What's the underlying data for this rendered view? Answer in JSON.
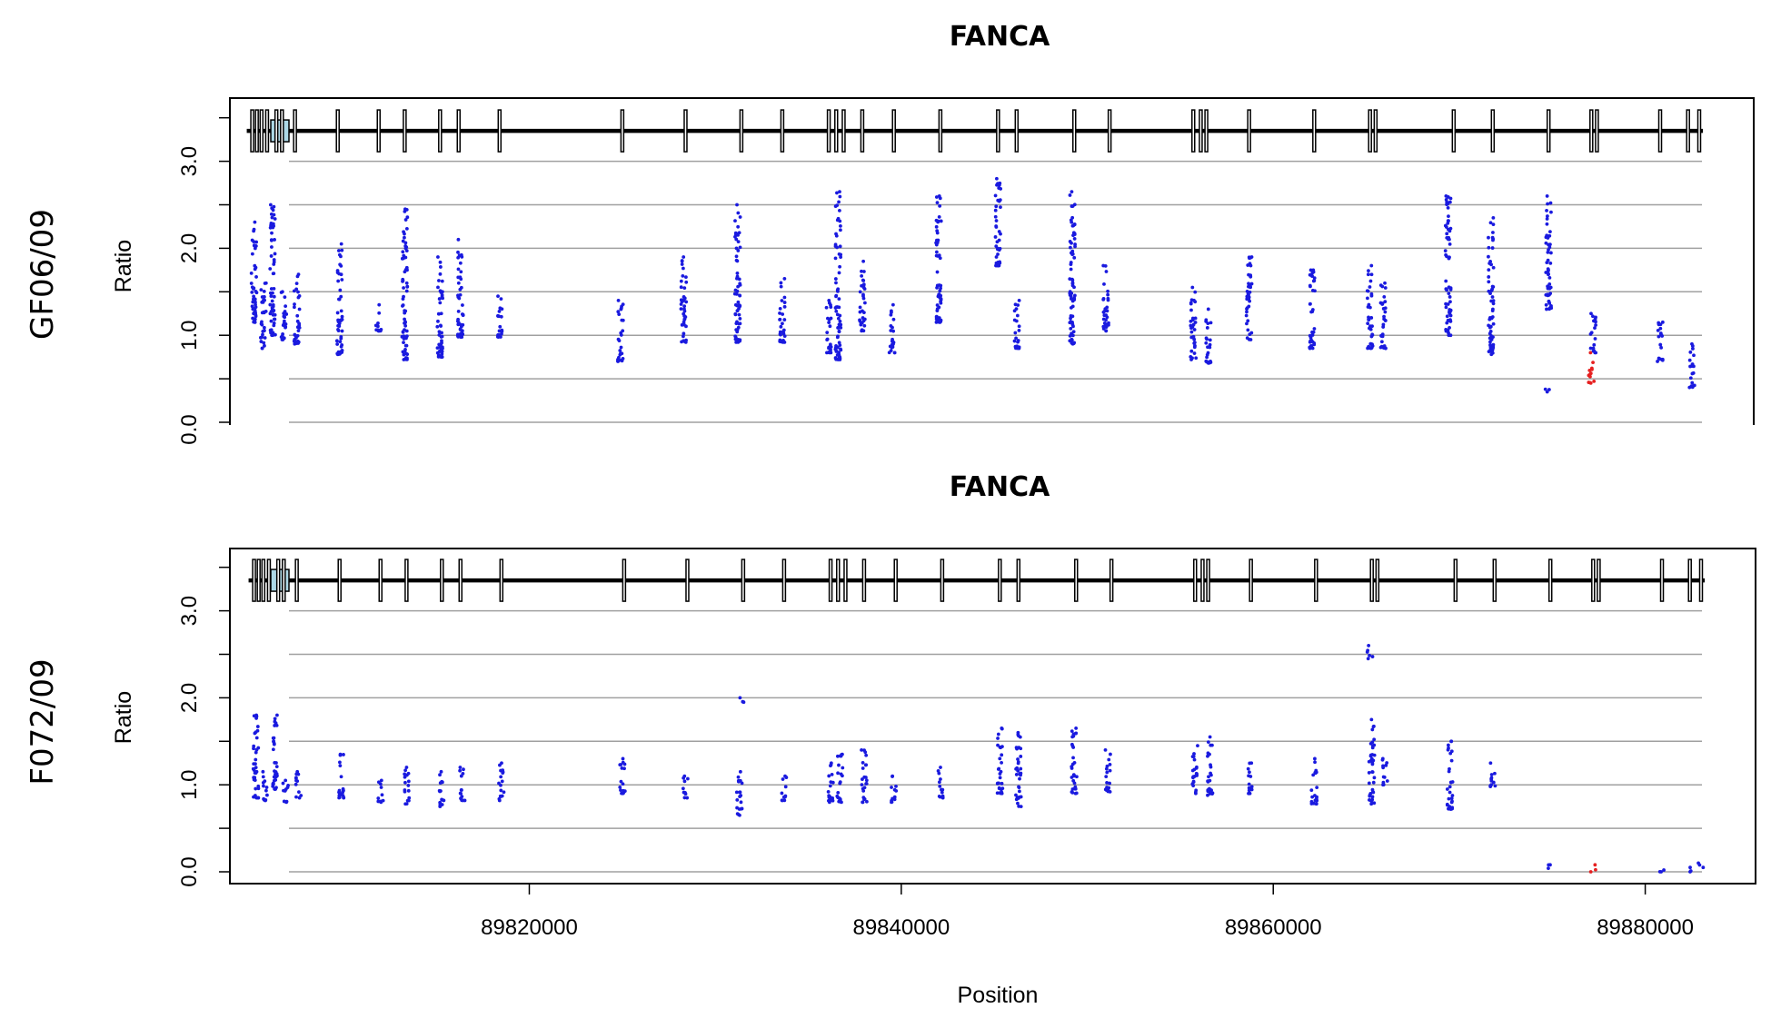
{
  "chart_data": [
    {
      "type": "scatter",
      "title": "FANCA",
      "sample_label": "GF06/09",
      "ylabel": "Ratio",
      "xlabel": "",
      "xlim": [
        89802000,
        89883000
      ],
      "ylim": [
        0.0,
        3.6
      ],
      "yticks": [
        {
          "value": 0.0,
          "label": "0.0"
        },
        {
          "value": 1.0,
          "label": "1.0"
        },
        {
          "value": 2.0,
          "label": "2.0"
        },
        {
          "value": 3.0,
          "label": "3.0"
        }
      ],
      "grid_lines": [
        0.0,
        0.5,
        1.0,
        1.5,
        2.0,
        2.5,
        3.0
      ],
      "grid": true,
      "colors": {
        "normal": "#1a1adf",
        "deleted": "#e62020",
        "grid": "#a0a0a0",
        "gene_box": "#add8e6"
      },
      "gene_model": {
        "y": 3.35,
        "start": 89805200,
        "end": 89883200,
        "utr_box": 89804000,
        "exons": [
          89805200,
          89805450,
          89805700,
          89806000,
          89806500,
          89806800,
          89807500,
          89809800,
          89812000,
          89813400,
          89815300,
          89816300,
          89818500,
          89825100,
          89828500,
          89831500,
          89833700,
          89836200,
          89836600,
          89837000,
          89838000,
          89839700,
          89842200,
          89845300,
          89846300,
          89849400,
          89851300,
          89855800,
          89856200,
          89856500,
          89858800,
          89862300,
          89865300,
          89865600,
          89869800,
          89871900,
          89874900,
          89877200,
          89877500,
          89880900,
          89882400,
          89883000
        ]
      },
      "series": [
        {
          "color": "normal",
          "clusters": [
            {
              "x": 89805300,
              "lo": 1.15,
              "hi": 2.3
            },
            {
              "x": 89805800,
              "lo": 0.85,
              "hi": 1.6
            },
            {
              "x": 89806300,
              "lo": 1.0,
              "hi": 2.5
            },
            {
              "x": 89806900,
              "lo": 0.95,
              "hi": 1.5
            },
            {
              "x": 89807600,
              "lo": 0.9,
              "hi": 1.7
            },
            {
              "x": 89809900,
              "lo": 0.78,
              "hi": 2.05
            },
            {
              "x": 89812000,
              "lo": 1.05,
              "hi": 1.35
            },
            {
              "x": 89813400,
              "lo": 0.72,
              "hi": 2.45
            },
            {
              "x": 89815300,
              "lo": 0.75,
              "hi": 1.9
            },
            {
              "x": 89816400,
              "lo": 0.98,
              "hi": 2.1
            },
            {
              "x": 89818500,
              "lo": 0.98,
              "hi": 1.45
            },
            {
              "x": 89825000,
              "lo": 0.7,
              "hi": 1.4
            },
            {
              "x": 89828400,
              "lo": 0.92,
              "hi": 1.9
            },
            {
              "x": 89831300,
              "lo": 0.92,
              "hi": 2.5
            },
            {
              "x": 89833700,
              "lo": 0.92,
              "hi": 1.65
            },
            {
              "x": 89836200,
              "lo": 0.8,
              "hi": 1.4
            },
            {
              "x": 89836700,
              "lo": 0.72,
              "hi": 2.65
            },
            {
              "x": 89838000,
              "lo": 1.05,
              "hi": 1.85
            },
            {
              "x": 89839600,
              "lo": 0.8,
              "hi": 1.35
            },
            {
              "x": 89842100,
              "lo": 1.15,
              "hi": 2.6
            },
            {
              "x": 89845300,
              "lo": 1.8,
              "hi": 2.8
            },
            {
              "x": 89846300,
              "lo": 0.85,
              "hi": 1.4
            },
            {
              "x": 89849300,
              "lo": 0.9,
              "hi": 2.65
            },
            {
              "x": 89851100,
              "lo": 1.05,
              "hi": 1.8
            },
            {
              "x": 89855800,
              "lo": 0.72,
              "hi": 1.55
            },
            {
              "x": 89856600,
              "lo": 0.68,
              "hi": 1.3
            },
            {
              "x": 89858800,
              "lo": 0.95,
              "hi": 1.9
            },
            {
              "x": 89862200,
              "lo": 0.85,
              "hi": 1.75
            },
            {
              "x": 89865300,
              "lo": 0.85,
              "hi": 1.8
            },
            {
              "x": 89866000,
              "lo": 0.85,
              "hi": 1.6
            },
            {
              "x": 89869500,
              "lo": 1.0,
              "hi": 2.6
            },
            {
              "x": 89871800,
              "lo": 0.78,
              "hi": 2.35
            },
            {
              "x": 89874800,
              "lo": 0.35,
              "hi": 0.38
            },
            {
              "x": 89874900,
              "lo": 1.3,
              "hi": 2.6
            },
            {
              "x": 89877300,
              "lo": 0.8,
              "hi": 1.25
            },
            {
              "x": 89880900,
              "lo": 0.7,
              "hi": 1.15
            },
            {
              "x": 89882600,
              "lo": 0.4,
              "hi": 0.9
            }
          ]
        },
        {
          "color": "deleted",
          "clusters": [
            {
              "x": 89877200,
              "lo": 0.45,
              "hi": 0.8
            }
          ]
        }
      ]
    },
    {
      "type": "scatter",
      "title": "FANCA",
      "sample_label": "F072/09",
      "ylabel": "Ratio",
      "xlabel": "Position",
      "xlim": [
        89802000,
        89883000
      ],
      "ylim": [
        0.0,
        3.6
      ],
      "xticks": [
        {
          "value": 89820000,
          "label": "89820000"
        },
        {
          "value": 89840000,
          "label": "89840000"
        },
        {
          "value": 89860000,
          "label": "89860000"
        },
        {
          "value": 89880000,
          "label": "89880000"
        }
      ],
      "yticks": [
        {
          "value": 0.0,
          "label": "0.0"
        },
        {
          "value": 1.0,
          "label": "1.0"
        },
        {
          "value": 2.0,
          "label": "2.0"
        },
        {
          "value": 3.0,
          "label": "3.0"
        }
      ],
      "grid_lines": [
        0.0,
        0.5,
        1.0,
        1.5,
        2.0,
        2.5,
        3.0
      ],
      "grid": true,
      "colors": {
        "normal": "#1a1adf",
        "deleted": "#e62020",
        "grid": "#a0a0a0",
        "gene_box": "#add8e6"
      },
      "gene_model": {
        "y": 3.35,
        "start": 89805200,
        "end": 89883200,
        "utr_box": 89804000,
        "exons": [
          89805200,
          89805450,
          89805700,
          89806000,
          89806500,
          89806800,
          89807500,
          89809800,
          89812000,
          89813400,
          89815300,
          89816300,
          89818500,
          89825100,
          89828500,
          89831500,
          89833700,
          89836200,
          89836600,
          89837000,
          89838000,
          89839700,
          89842200,
          89845300,
          89846300,
          89849400,
          89851300,
          89855800,
          89856200,
          89856500,
          89858800,
          89862300,
          89865300,
          89865600,
          89869800,
          89871900,
          89874900,
          89877200,
          89877500,
          89880900,
          89882400,
          89883000
        ]
      },
      "series": [
        {
          "color": "normal",
          "clusters": [
            {
              "x": 89805300,
              "lo": 0.85,
              "hi": 1.8
            },
            {
              "x": 89805800,
              "lo": 0.82,
              "hi": 1.15
            },
            {
              "x": 89806300,
              "lo": 0.95,
              "hi": 1.8
            },
            {
              "x": 89806900,
              "lo": 0.8,
              "hi": 1.05
            },
            {
              "x": 89807600,
              "lo": 0.85,
              "hi": 1.15
            },
            {
              "x": 89809900,
              "lo": 0.85,
              "hi": 1.35
            },
            {
              "x": 89812000,
              "lo": 0.8,
              "hi": 1.05
            },
            {
              "x": 89813400,
              "lo": 0.78,
              "hi": 1.2
            },
            {
              "x": 89815300,
              "lo": 0.75,
              "hi": 1.15
            },
            {
              "x": 89816400,
              "lo": 0.82,
              "hi": 1.2
            },
            {
              "x": 89818500,
              "lo": 0.82,
              "hi": 1.25
            },
            {
              "x": 89825000,
              "lo": 0.9,
              "hi": 1.3
            },
            {
              "x": 89828400,
              "lo": 0.85,
              "hi": 1.1
            },
            {
              "x": 89831300,
              "lo": 0.65,
              "hi": 1.15
            },
            {
              "x": 89831400,
              "lo": 1.95,
              "hi": 2.0
            },
            {
              "x": 89833700,
              "lo": 0.82,
              "hi": 1.1
            },
            {
              "x": 89836200,
              "lo": 0.8,
              "hi": 1.25
            },
            {
              "x": 89836700,
              "lo": 0.8,
              "hi": 1.35
            },
            {
              "x": 89838000,
              "lo": 0.8,
              "hi": 1.4
            },
            {
              "x": 89839600,
              "lo": 0.8,
              "hi": 1.1
            },
            {
              "x": 89842100,
              "lo": 0.85,
              "hi": 1.2
            },
            {
              "x": 89845300,
              "lo": 0.9,
              "hi": 1.65
            },
            {
              "x": 89846300,
              "lo": 0.75,
              "hi": 1.6
            },
            {
              "x": 89849300,
              "lo": 0.9,
              "hi": 1.65
            },
            {
              "x": 89851100,
              "lo": 0.92,
              "hi": 1.4
            },
            {
              "x": 89855800,
              "lo": 0.9,
              "hi": 1.45
            },
            {
              "x": 89856600,
              "lo": 0.88,
              "hi": 1.55
            },
            {
              "x": 89858800,
              "lo": 0.9,
              "hi": 1.25
            },
            {
              "x": 89862200,
              "lo": 0.78,
              "hi": 1.3
            },
            {
              "x": 89865300,
              "lo": 0.78,
              "hi": 1.75
            },
            {
              "x": 89865200,
              "lo": 2.45,
              "hi": 2.6
            },
            {
              "x": 89866000,
              "lo": 1.0,
              "hi": 1.3
            },
            {
              "x": 89869500,
              "lo": 0.72,
              "hi": 1.5
            },
            {
              "x": 89871800,
              "lo": 0.98,
              "hi": 1.25
            },
            {
              "x": 89874800,
              "lo": 0.04,
              "hi": 0.08
            },
            {
              "x": 89880900,
              "lo": 0.0,
              "hi": 0.02
            },
            {
              "x": 89882400,
              "lo": 0.0,
              "hi": 0.05
            },
            {
              "x": 89883000,
              "lo": 0.05,
              "hi": 0.1
            }
          ]
        },
        {
          "color": "deleted",
          "clusters": [
            {
              "x": 89877200,
              "lo": 0.0,
              "hi": 0.08
            }
          ]
        }
      ]
    }
  ]
}
